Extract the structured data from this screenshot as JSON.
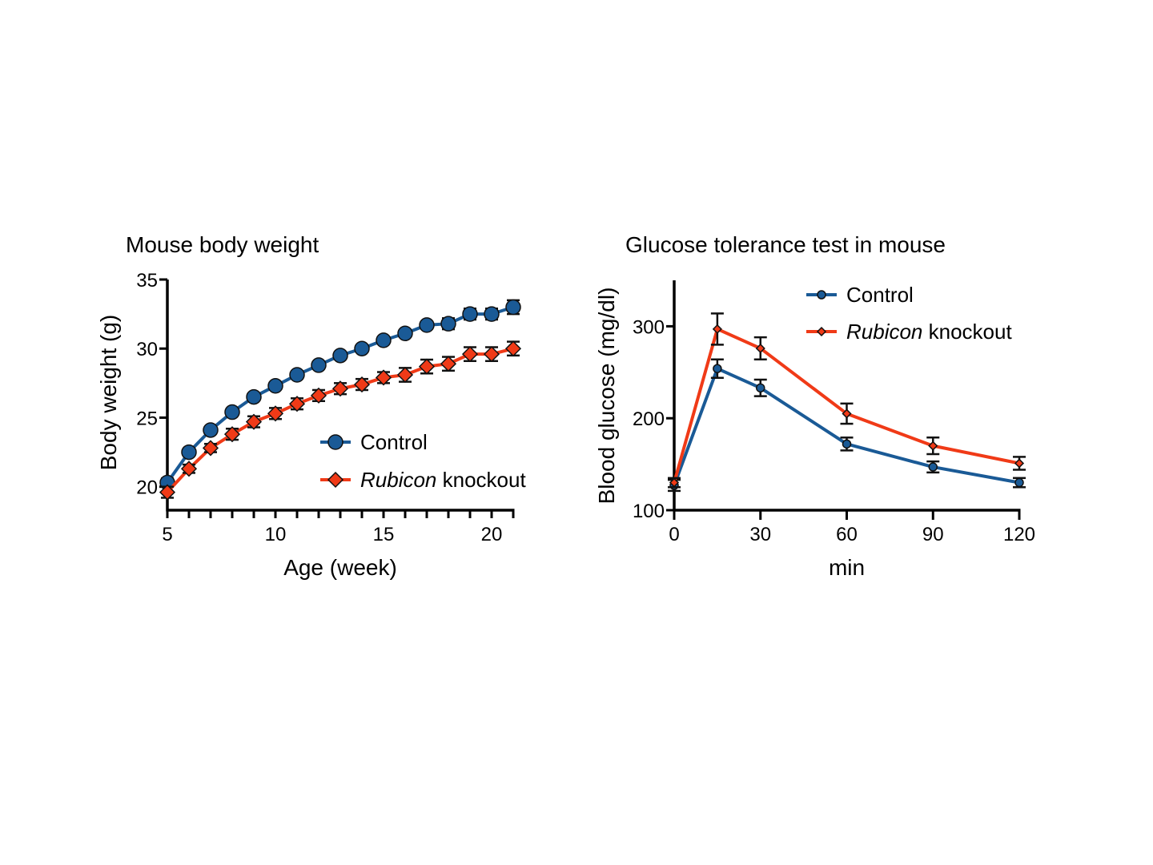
{
  "chart_data": [
    {
      "type": "line",
      "title": "Mouse body weight",
      "xlabel": "Age (week)",
      "ylabel": "Body weight (g)",
      "xlim": [
        5,
        21
      ],
      "ylim": [
        18.3,
        35
      ],
      "xticks": [
        5,
        10,
        15,
        20
      ],
      "yticks": [
        20,
        25,
        30,
        35
      ],
      "grid": false,
      "legend": "bottom-right",
      "x": [
        5,
        6,
        7,
        8,
        9,
        10,
        11,
        12,
        13,
        14,
        15,
        16,
        17,
        18,
        19,
        20,
        21
      ],
      "series": [
        {
          "name": "Control",
          "color": "#1a5a96",
          "marker": "circle",
          "values": [
            20.3,
            22.5,
            24.1,
            25.4,
            26.5,
            27.3,
            28.1,
            28.8,
            29.5,
            30.0,
            30.6,
            31.1,
            31.7,
            31.8,
            32.5,
            32.5,
            33.0
          ],
          "errors": [
            0.3,
            0.2,
            0.2,
            0.2,
            0.2,
            0.2,
            0.2,
            0.2,
            0.2,
            0.2,
            0.2,
            0.2,
            0.2,
            0.4,
            0.4,
            0.4,
            0.5
          ]
        },
        {
          "name_italic": "Rubicon",
          "name": "knockout",
          "color": "#f03a17",
          "marker": "diamond",
          "values": [
            19.6,
            21.3,
            22.8,
            23.8,
            24.7,
            25.3,
            26.0,
            26.6,
            27.1,
            27.4,
            27.9,
            28.1,
            28.7,
            28.9,
            29.6,
            29.6,
            30.0
          ],
          "errors": [
            0.4,
            0.3,
            0.3,
            0.4,
            0.4,
            0.4,
            0.4,
            0.4,
            0.4,
            0.4,
            0.4,
            0.5,
            0.5,
            0.5,
            0.5,
            0.5,
            0.5
          ]
        }
      ]
    },
    {
      "type": "line",
      "title": "Glucose tolerance test in mouse",
      "xlabel": "min",
      "ylabel": "Blood glucose (mg/dl)",
      "xlim": [
        0,
        120
      ],
      "ylim": [
        100,
        350
      ],
      "xticks": [
        0,
        30,
        60,
        90,
        120
      ],
      "yticks": [
        100,
        200,
        300
      ],
      "grid": false,
      "legend": "top-right",
      "x": [
        0,
        15,
        30,
        60,
        90,
        120
      ],
      "series": [
        {
          "name": "Control",
          "color": "#1a5a96",
          "marker": "circle",
          "values": [
            127,
            254,
            233,
            172,
            147,
            130
          ],
          "errors": [
            6,
            10,
            9,
            7,
            6,
            5
          ]
        },
        {
          "name_italic": "Rubicon",
          "name": "knockout",
          "color": "#f03a17",
          "marker": "diamond",
          "values": [
            130,
            297,
            276,
            205,
            170,
            151
          ],
          "errors": [
            5,
            17,
            12,
            11,
            9,
            7
          ]
        }
      ]
    }
  ]
}
